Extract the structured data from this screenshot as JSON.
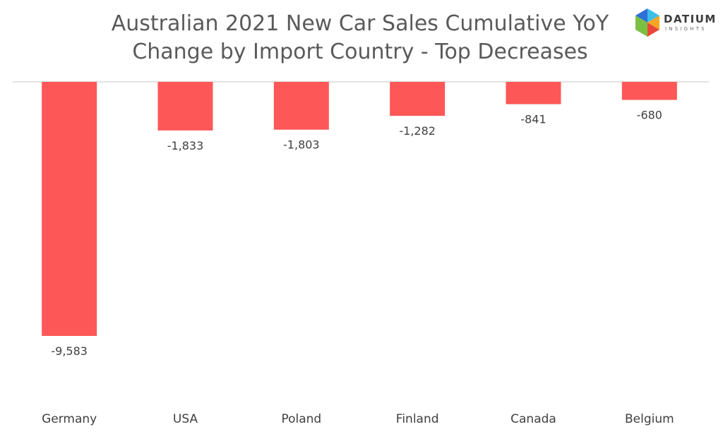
{
  "logo": {
    "name": "DATIUM",
    "tagline": "INSIGHTS",
    "colors": [
      "#2e6fd8",
      "#3cc0e8",
      "#f5a623",
      "#e8473a",
      "#7bc043"
    ]
  },
  "chart_data": {
    "type": "bar",
    "title_lines": [
      "Australian 2021  New Car Sales Cumulative YoY",
      "Change by Import Country - Top Decreases"
    ],
    "categories": [
      "Germany",
      "USA",
      "Poland",
      "Finland",
      "Canada",
      "Belgium"
    ],
    "values": [
      -9583,
      -1833,
      -1803,
      -1282,
      -841,
      -680
    ],
    "data_labels": [
      "-9,583",
      "-1,833",
      "-1,803",
      "-1,282",
      "-841",
      "-680"
    ],
    "xlabel": "",
    "ylabel": "",
    "ylim": [
      -9583,
      0
    ],
    "grid": false,
    "legend": "none",
    "bar_color": "#fe5757"
  }
}
